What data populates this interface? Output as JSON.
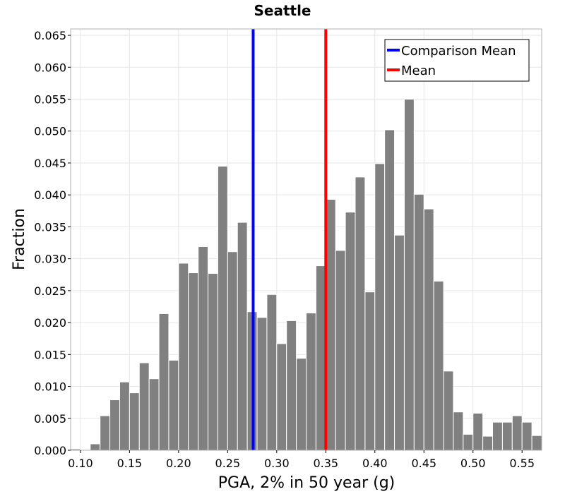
{
  "chart_data": {
    "type": "bar",
    "title": "Seattle",
    "xlabel": "PGA, 2% in 50 year (g)",
    "ylabel": "Fraction",
    "xlim": [
      0.09,
      0.57
    ],
    "ylim": [
      0.0,
      0.066
    ],
    "bin_width": 0.01,
    "bin_starts": [
      0.09,
      0.1,
      0.11,
      0.12,
      0.13,
      0.14,
      0.15,
      0.16,
      0.17,
      0.18,
      0.19,
      0.2,
      0.21,
      0.22,
      0.23,
      0.24,
      0.25,
      0.26,
      0.27,
      0.28,
      0.29,
      0.3,
      0.31,
      0.32,
      0.33,
      0.34,
      0.35,
      0.36,
      0.37,
      0.38,
      0.39,
      0.4,
      0.41,
      0.42,
      0.43,
      0.44,
      0.45,
      0.46,
      0.47,
      0.48,
      0.49,
      0.5,
      0.51,
      0.52,
      0.53,
      0.54,
      0.55,
      0.56
    ],
    "values": [
      0.0002,
      0.0,
      0.001,
      0.0054,
      0.0079,
      0.0107,
      0.009,
      0.0137,
      0.0112,
      0.0214,
      0.0141,
      0.0293,
      0.0278,
      0.0319,
      0.0277,
      0.0445,
      0.0311,
      0.0357,
      0.0217,
      0.0208,
      0.0244,
      0.0167,
      0.0203,
      0.0144,
      0.0215,
      0.0289,
      0.0393,
      0.0313,
      0.0373,
      0.0428,
      0.0248,
      0.0449,
      0.0502,
      0.0337,
      0.055,
      0.0401,
      0.0378,
      0.0265,
      0.0124,
      0.006,
      0.0025,
      0.0058,
      0.0022,
      0.0044,
      0.0044,
      0.0054,
      0.0044,
      0.0023
    ],
    "bar_color": "#808080",
    "x_ticks": [
      "0.10",
      "0.15",
      "0.20",
      "0.25",
      "0.30",
      "0.35",
      "0.40",
      "0.45",
      "0.50",
      "0.55"
    ],
    "y_ticks": [
      "0.000",
      "0.005",
      "0.010",
      "0.015",
      "0.020",
      "0.025",
      "0.030",
      "0.035",
      "0.040",
      "0.045",
      "0.050",
      "0.055",
      "0.060",
      "0.065"
    ],
    "grid": true,
    "vlines": [
      {
        "name": "Comparison Mean",
        "x": 0.276,
        "color": "#0000ff"
      },
      {
        "name": "Mean",
        "x": 0.35,
        "color": "#ff0000"
      }
    ],
    "legend": {
      "position": "top-right",
      "entries": [
        "Comparison Mean",
        "Mean"
      ]
    }
  }
}
